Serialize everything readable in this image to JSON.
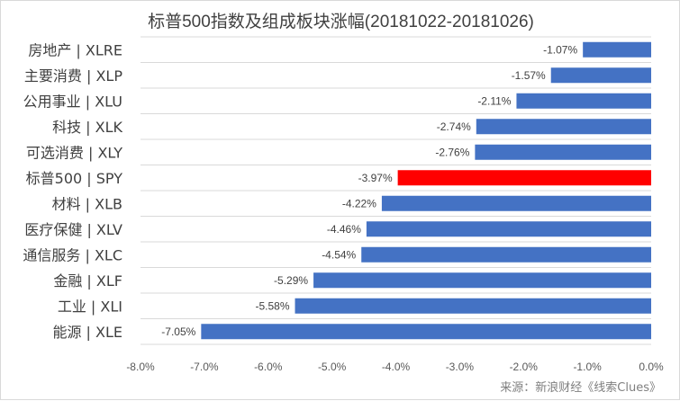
{
  "chart_data": {
    "type": "bar",
    "orientation": "horizontal",
    "title": "标普500指数及组成板块涨幅(20181022-20181026)",
    "categories": [
      "房地产 | XLRE",
      "主要消费 | XLP",
      "公用事业 | XLU",
      "科技 | XLK",
      "可选消费 | XLY",
      "标普500 | SPY",
      "材料 | XLB",
      "医疗保健 | XLV",
      "通信服务 | XLC",
      "金融 | XLF",
      "工业 | XLI",
      "能源 | XLE"
    ],
    "values": [
      -1.07,
      -1.57,
      -2.11,
      -2.74,
      -2.76,
      -3.97,
      -4.22,
      -4.46,
      -4.54,
      -5.29,
      -5.58,
      -7.05
    ],
    "value_labels": [
      "-1.07%",
      "-1.57%",
      "-2.11%",
      "-2.74%",
      "-2.76%",
      "-3.97%",
      "-4.22%",
      "-4.46%",
      "-4.54%",
      "-5.29%",
      "-5.58%",
      "-7.05%"
    ],
    "highlight_category": "标普500 | SPY",
    "xlim": [
      -8.0,
      0.0
    ],
    "xticks": [
      -8.0,
      -7.0,
      -6.0,
      -5.0,
      -4.0,
      -3.0,
      -2.0,
      -1.0,
      0.0
    ],
    "xtick_labels": [
      "-8.0%",
      "-7.0%",
      "-6.0%",
      "-5.0%",
      "-4.0%",
      "-3.0%",
      "-2.0%",
      "-1.0%",
      "0.0%"
    ],
    "gridlines": "horizontal",
    "xlabel": "",
    "ylabel": "",
    "colors": {
      "bar": "#4472c4",
      "highlight": "#ff0000",
      "grid": "#d9d9d9"
    }
  },
  "source": "来源：新浪财经《线索Clues》"
}
